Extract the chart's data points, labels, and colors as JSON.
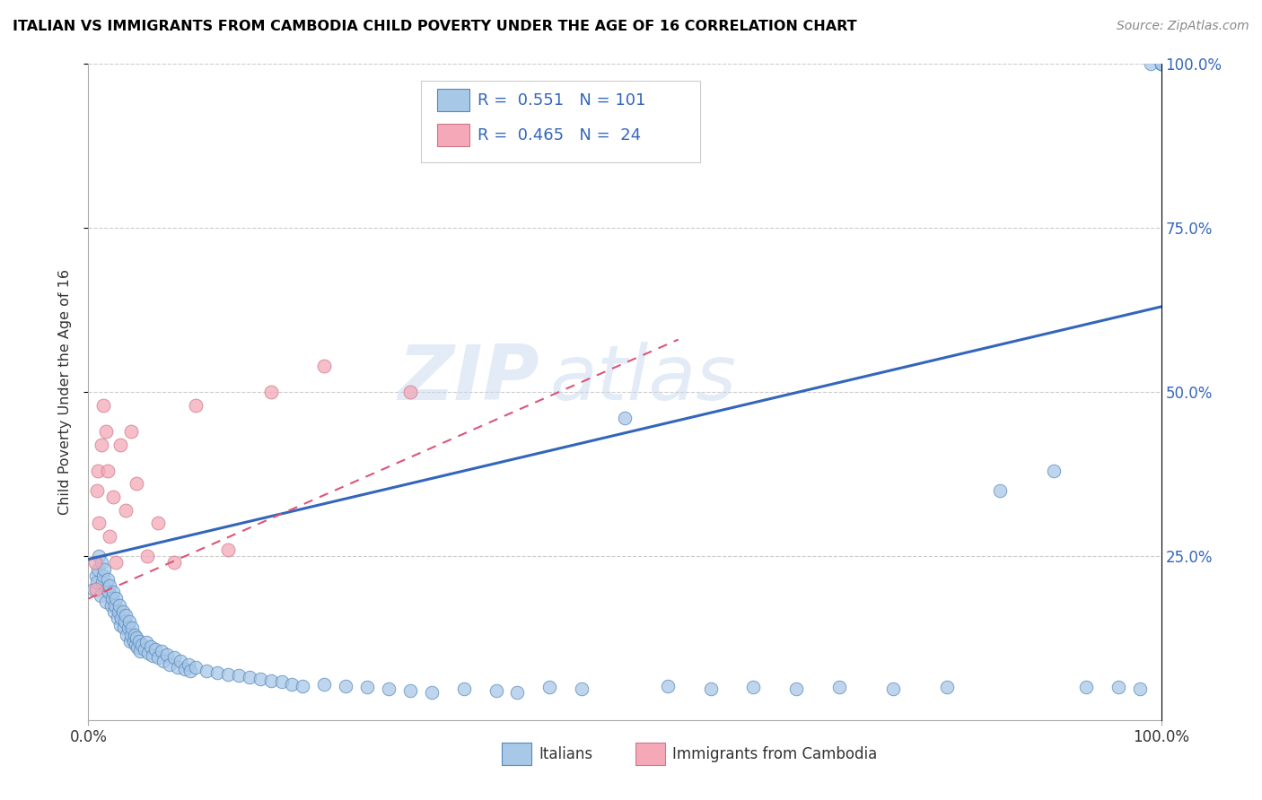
{
  "title": "ITALIAN VS IMMIGRANTS FROM CAMBODIA CHILD POVERTY UNDER THE AGE OF 16 CORRELATION CHART",
  "source": "Source: ZipAtlas.com",
  "ylabel": "Child Poverty Under the Age of 16",
  "xlim": [
    0,
    1
  ],
  "ylim": [
    0,
    1
  ],
  "legend1_R": "0.551",
  "legend1_N": "101",
  "legend2_R": "0.465",
  "legend2_N": "24",
  "italian_color": "#a8c8e8",
  "italian_edge": "#5588bb",
  "cambodia_color": "#f4a8b8",
  "cambodia_edge": "#cc7788",
  "line_italian_color": "#3366bb",
  "line_cambodia_color": "#dd5577",
  "watermark_zip": "ZIP",
  "watermark_atlas": "atlas",
  "italians_label": "Italians",
  "cambodia_label": "Immigrants from Cambodia",
  "it_x": [
    0.005,
    0.007,
    0.008,
    0.009,
    0.01,
    0.011,
    0.012,
    0.013,
    0.014,
    0.015,
    0.016,
    0.017,
    0.018,
    0.019,
    0.02,
    0.021,
    0.022,
    0.023,
    0.024,
    0.025,
    0.026,
    0.027,
    0.028,
    0.029,
    0.03,
    0.031,
    0.032,
    0.033,
    0.034,
    0.035,
    0.036,
    0.037,
    0.038,
    0.039,
    0.04,
    0.041,
    0.042,
    0.043,
    0.044,
    0.045,
    0.046,
    0.047,
    0.048,
    0.05,
    0.052,
    0.054,
    0.056,
    0.058,
    0.06,
    0.062,
    0.065,
    0.068,
    0.07,
    0.073,
    0.076,
    0.08,
    0.083,
    0.086,
    0.09,
    0.093,
    0.095,
    0.1,
    0.11,
    0.12,
    0.13,
    0.14,
    0.15,
    0.16,
    0.17,
    0.18,
    0.19,
    0.2,
    0.22,
    0.24,
    0.26,
    0.28,
    0.3,
    0.32,
    0.35,
    0.38,
    0.4,
    0.43,
    0.46,
    0.5,
    0.54,
    0.58,
    0.62,
    0.66,
    0.7,
    0.75,
    0.8,
    0.85,
    0.9,
    0.93,
    0.96,
    0.98,
    0.99,
    1.0,
    1.0,
    1.0,
    1.0
  ],
  "it_y": [
    0.2,
    0.22,
    0.21,
    0.23,
    0.25,
    0.19,
    0.24,
    0.21,
    0.22,
    0.23,
    0.18,
    0.2,
    0.215,
    0.195,
    0.205,
    0.175,
    0.185,
    0.195,
    0.165,
    0.175,
    0.185,
    0.155,
    0.165,
    0.175,
    0.145,
    0.155,
    0.165,
    0.14,
    0.15,
    0.16,
    0.13,
    0.14,
    0.15,
    0.12,
    0.13,
    0.14,
    0.12,
    0.13,
    0.115,
    0.125,
    0.11,
    0.12,
    0.105,
    0.115,
    0.108,
    0.118,
    0.102,
    0.112,
    0.098,
    0.108,
    0.095,
    0.105,
    0.09,
    0.1,
    0.085,
    0.095,
    0.08,
    0.09,
    0.078,
    0.085,
    0.075,
    0.08,
    0.075,
    0.072,
    0.07,
    0.068,
    0.065,
    0.063,
    0.06,
    0.058,
    0.055,
    0.052,
    0.055,
    0.052,
    0.05,
    0.048,
    0.045,
    0.042,
    0.048,
    0.045,
    0.042,
    0.05,
    0.048,
    0.46,
    0.052,
    0.048,
    0.05,
    0.048,
    0.05,
    0.048,
    0.05,
    0.35,
    0.38,
    0.05,
    0.05,
    0.048,
    1.0,
    1.0,
    1.0,
    1.0,
    1.0
  ],
  "cam_x": [
    0.006,
    0.007,
    0.008,
    0.009,
    0.01,
    0.012,
    0.014,
    0.016,
    0.018,
    0.02,
    0.023,
    0.026,
    0.03,
    0.035,
    0.04,
    0.045,
    0.055,
    0.065,
    0.08,
    0.1,
    0.13,
    0.17,
    0.22,
    0.3
  ],
  "cam_y": [
    0.24,
    0.2,
    0.35,
    0.38,
    0.3,
    0.42,
    0.48,
    0.44,
    0.38,
    0.28,
    0.34,
    0.24,
    0.42,
    0.32,
    0.44,
    0.36,
    0.25,
    0.3,
    0.24,
    0.48,
    0.26,
    0.5,
    0.54,
    0.5
  ],
  "it_trend_x0": 0.0,
  "it_trend_x1": 1.0,
  "it_trend_y0": 0.245,
  "it_trend_y1": 0.63,
  "cam_trend_x0": 0.0,
  "cam_trend_x1": 0.55,
  "cam_trend_y0": 0.185,
  "cam_trend_y1": 0.58
}
